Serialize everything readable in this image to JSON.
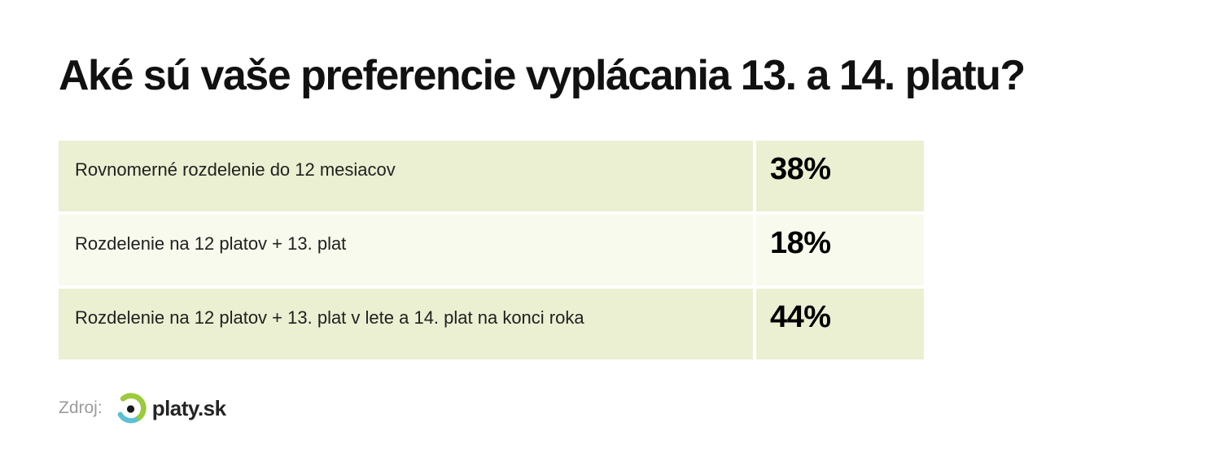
{
  "title": "Aké sú vaše preferencie vyplácania 13. a 14. platu?",
  "chart_data": {
    "type": "table",
    "title": "Aké sú vaše preferencie vyplácania 13. a 14. platu?",
    "categories": [
      "Rovnomerné rozdelenie do 12 mesiacov",
      "Rozdelenie na 12 platov + 13. plat",
      "Rozdelenie na 12 platov + 13. plat v lete a 14. plat na konci roka"
    ],
    "values": [
      38,
      18,
      44
    ],
    "value_labels": [
      "38%",
      "18%",
      "44%"
    ],
    "unit": "%",
    "legend": "none",
    "grid": "off"
  },
  "source": {
    "label": "Zdroj:",
    "logo_text": "platy.sk"
  },
  "colors": {
    "background": "#ffffff",
    "row_green": "#eaf0d1",
    "row_light": "#f7faec",
    "title_text": "#111111",
    "label_text": "#212121",
    "value_text": "#000000",
    "source_text": "#9b9b9b",
    "logo_green": "#9bca3c",
    "logo_blue": "#5cc0d5",
    "logo_dot": "#1a1a1a"
  }
}
